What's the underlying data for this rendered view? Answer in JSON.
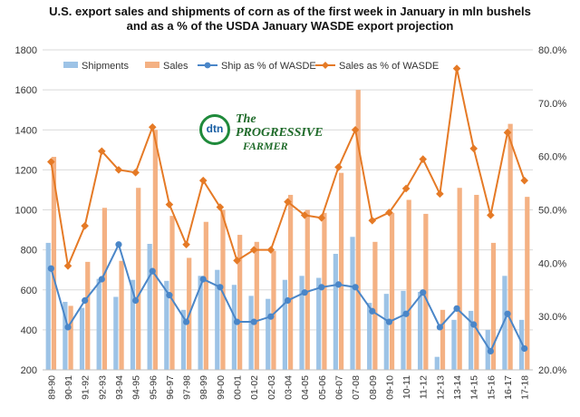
{
  "chart_data": {
    "type": "bar",
    "title_line1": "U.S. export sales and shipments of corn as of the first week in January in mln bushels",
    "title_line2": "and as a % of the USDA January WASDE export projection",
    "categories": [
      "89-90",
      "90-91",
      "91-92",
      "92-93",
      "93-94",
      "94-95",
      "95-96",
      "96-97",
      "97-98",
      "98-99",
      "99-00",
      "00-01",
      "01-02",
      "02-03",
      "03-04",
      "04-05",
      "05-06",
      "06-07",
      "07-08",
      "08-09",
      "09-10",
      "10-11",
      "11-12",
      "12-13",
      "13-14",
      "14-15",
      "15-16",
      "16-17",
      "17-18"
    ],
    "series": [
      {
        "name": "Shipments",
        "kind": "bar",
        "axis": "left",
        "color": "#9dc3e6",
        "values": [
          835,
          540,
          510,
          655,
          565,
          650,
          830,
          645,
          500,
          670,
          700,
          625,
          570,
          555,
          650,
          670,
          660,
          780,
          865,
          535,
          580,
          595,
          590,
          265,
          450,
          495,
          400,
          670,
          450
        ]
      },
      {
        "name": "Sales",
        "kind": "bar",
        "axis": "left",
        "color": "#f4b183",
        "values": [
          1265,
          520,
          740,
          1010,
          745,
          1110,
          1400,
          970,
          760,
          940,
          1000,
          875,
          840,
          795,
          1075,
          1000,
          985,
          1185,
          1600,
          840,
          985,
          1050,
          980,
          500,
          1110,
          1075,
          835,
          1430,
          1065
        ]
      },
      {
        "name": "Ship as % of WASDE",
        "kind": "line",
        "axis": "right",
        "color": "#4a86c8",
        "values": [
          39.0,
          28.0,
          33.0,
          37.0,
          43.5,
          33.0,
          38.5,
          34.0,
          29.0,
          37.0,
          35.5,
          29.0,
          29.0,
          30.0,
          33.0,
          34.5,
          35.5,
          36.0,
          35.5,
          31.0,
          29.0,
          30.5,
          34.5,
          28.0,
          31.5,
          28.5,
          23.5,
          30.5,
          24.0
        ]
      },
      {
        "name": "Sales as % of WASDE",
        "kind": "line",
        "axis": "right",
        "color": "#e57a26",
        "values": [
          59.0,
          39.5,
          47.0,
          61.0,
          57.5,
          57.0,
          65.5,
          51.0,
          43.5,
          55.5,
          50.5,
          40.5,
          42.5,
          42.5,
          51.5,
          49.0,
          48.5,
          58.0,
          65.0,
          48.0,
          49.5,
          54.0,
          59.5,
          53.0,
          76.5,
          61.5,
          49.0,
          64.5,
          55.5
        ]
      }
    ],
    "left_axis": {
      "min": 200,
      "max": 1800,
      "ticks": [
        200,
        400,
        600,
        800,
        1000,
        1200,
        1400,
        1600,
        1800
      ]
    },
    "right_axis": {
      "min": 20,
      "max": 80,
      "ticks": [
        "20.0%",
        "30.0%",
        "40.0%",
        "50.0%",
        "60.0%",
        "70.0%",
        "80.0%"
      ]
    },
    "grid": true,
    "legend_position": "top"
  },
  "logo": {
    "dtn": "dtn",
    "line1": "The PROGRESSIVE",
    "line2": "FARMER"
  }
}
